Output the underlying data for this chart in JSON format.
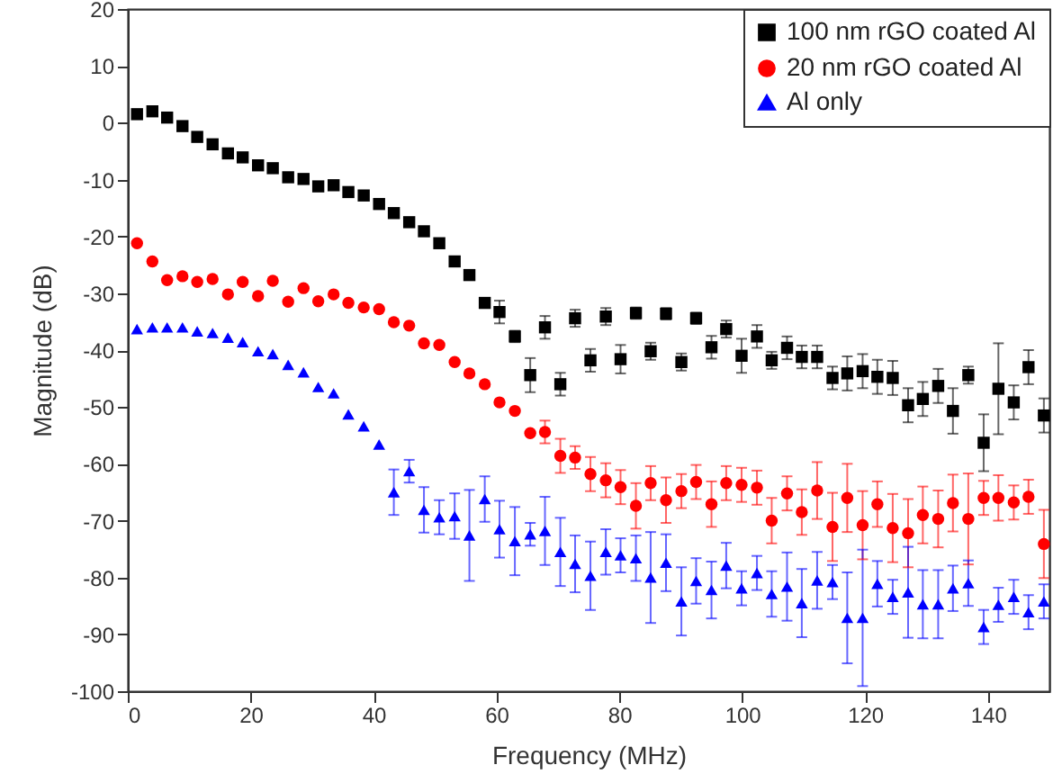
{
  "chart_data": {
    "type": "scatter",
    "xlabel": "Frequency (MHz)",
    "ylabel": "Magnitude (dB)",
    "xlim": [
      0,
      150
    ],
    "xticks": [
      0,
      20,
      40,
      60,
      80,
      100,
      120,
      140
    ],
    "ylim": [
      -100,
      20
    ],
    "yticks": [
      -100,
      -90,
      -80,
      -70,
      -60,
      -50,
      -40,
      -30,
      -20,
      -10,
      0,
      10,
      20
    ],
    "grid": false,
    "legend": "top right",
    "x": [
      1.5,
      4.0,
      6.4,
      8.9,
      11.3,
      13.8,
      16.3,
      18.7,
      21.2,
      23.6,
      26.1,
      28.6,
      31.0,
      33.5,
      35.9,
      38.4,
      40.9,
      43.3,
      45.8,
      48.2,
      50.7,
      53.2,
      55.6,
      58.1,
      60.5,
      63.0,
      65.5,
      67.9,
      70.4,
      72.8,
      75.3,
      77.8,
      80.2,
      82.7,
      85.1,
      87.6,
      90.1,
      92.5,
      95.0,
      97.4,
      99.9,
      102.4,
      104.8,
      107.3,
      109.7,
      112.2,
      114.7,
      117.1,
      119.6,
      122.0,
      124.5,
      127.0,
      129.4,
      131.9,
      134.3,
      136.8,
      139.3,
      141.7,
      144.2,
      146.6,
      149.1
    ],
    "series": [
      {
        "name": "100 nm rGO coated Al",
        "color": "#000000",
        "marker": "square",
        "values": [
          1.5,
          2.0,
          0.9,
          -0.6,
          -2.5,
          -3.8,
          -5.4,
          -6.1,
          -7.5,
          -8.0,
          -9.6,
          -9.9,
          -11.2,
          -11.0,
          -12.2,
          -12.8,
          -14.3,
          -15.9,
          -17.5,
          -19.1,
          -21.2,
          -24.4,
          -26.8,
          -31.7,
          -33.3,
          -37.6,
          -44.4,
          -36.0,
          -46.0,
          -34.4,
          -41.8,
          -34.1,
          -41.6,
          -33.5,
          -40.2,
          -33.6,
          -42.1,
          -34.4,
          -39.5,
          -36.3,
          -41.0,
          -37.6,
          -41.8,
          -39.6,
          -41.2,
          -41.2,
          -44.9,
          -44.1,
          -43.7,
          -44.7,
          -44.9,
          -49.7,
          -48.6,
          -46.3,
          -50.7,
          -44.4,
          -56.3,
          -46.8,
          -49.2,
          -43.0,
          -51.5
        ],
        "errors": [
          null,
          null,
          null,
          null,
          null,
          null,
          null,
          null,
          null,
          null,
          null,
          null,
          null,
          null,
          null,
          null,
          null,
          null,
          null,
          null,
          null,
          null,
          null,
          null,
          2,
          1,
          3,
          2,
          2,
          1.5,
          2,
          1.5,
          2.5,
          1,
          1.5,
          1,
          1.5,
          1,
          2,
          1.5,
          3,
          2,
          1.5,
          2,
          2,
          2,
          2,
          3,
          3,
          3,
          3,
          3,
          3,
          3,
          4,
          1.5,
          5,
          8,
          3,
          3,
          3
        ]
      },
      {
        "name": "20 nm rGO coated Al",
        "color": "#ff0000",
        "marker": "circle",
        "values": [
          -21.2,
          -24.4,
          -27.7,
          -27.0,
          -28.0,
          -27.5,
          -30.2,
          -28.0,
          -30.5,
          -27.8,
          -31.5,
          -29.1,
          -31.4,
          -30.2,
          -31.7,
          -32.5,
          -32.8,
          -35.1,
          -35.7,
          -38.8,
          -39.1,
          -42.1,
          -44.1,
          -46.0,
          -49.2,
          -50.7,
          -54.6,
          -54.4,
          -58.6,
          -58.9,
          -61.8,
          -62.9,
          -64.1,
          -67.4,
          -63.4,
          -66.4,
          -64.8,
          -63.2,
          -67.1,
          -63.4,
          -63.7,
          -64.2,
          -70.0,
          -65.2,
          -68.5,
          -64.7,
          -71.1,
          -66.0,
          -70.8,
          -67.1,
          -71.3,
          -72.2,
          -69.0,
          -69.7,
          -66.9,
          -69.7,
          -66.0,
          -66.0,
          -66.8,
          -65.8,
          -74.1
        ],
        "errors": [
          null,
          null,
          null,
          null,
          null,
          null,
          null,
          null,
          null,
          null,
          null,
          null,
          null,
          null,
          null,
          null,
          null,
          null,
          null,
          null,
          null,
          null,
          null,
          null,
          null,
          null,
          null,
          2,
          3,
          2,
          3,
          3,
          3,
          4,
          3,
          4,
          3,
          3,
          4,
          3,
          3,
          3,
          4,
          3,
          4,
          5,
          6,
          6,
          6,
          4,
          6,
          6,
          5,
          5,
          5,
          8,
          3,
          4,
          3,
          3,
          6
        ]
      },
      {
        "name": "Al only",
        "color": "#0000ff",
        "marker": "triangle",
        "values": [
          -36.3,
          -36.0,
          -36.0,
          -36.0,
          -36.7,
          -37.0,
          -37.8,
          -38.6,
          -40.2,
          -40.7,
          -42.6,
          -43.9,
          -46.5,
          -47.6,
          -51.3,
          -53.4,
          -56.6,
          -65.0,
          -61.3,
          -68.1,
          -69.4,
          -69.2,
          -72.6,
          -66.2,
          -71.5,
          -73.6,
          -72.4,
          -71.8,
          -75.5,
          -77.6,
          -79.7,
          -75.5,
          -76.1,
          -76.6,
          -80.0,
          -77.4,
          -84.2,
          -80.6,
          -82.2,
          -77.9,
          -81.9,
          -79.2,
          -82.9,
          -81.6,
          -84.5,
          -80.5,
          -80.8,
          -87.1,
          -87.1,
          -81.1,
          -83.4,
          -82.6,
          -84.7,
          -84.7,
          -81.9,
          -81.0,
          -88.7,
          -84.8,
          -83.4,
          -86.1,
          -84.2
        ],
        "errors": [
          null,
          null,
          null,
          null,
          null,
          null,
          null,
          null,
          null,
          null,
          null,
          null,
          null,
          null,
          null,
          null,
          null,
          4,
          2,
          4,
          3,
          4,
          8,
          4,
          5,
          6,
          2,
          6,
          6,
          5,
          6,
          4,
          3,
          4,
          8,
          5,
          6,
          4,
          5,
          4,
          3,
          3,
          4,
          6,
          6,
          5,
          3,
          8,
          12,
          4,
          3,
          8,
          6,
          6,
          4,
          4,
          3,
          3,
          3,
          3,
          3
        ]
      }
    ]
  }
}
